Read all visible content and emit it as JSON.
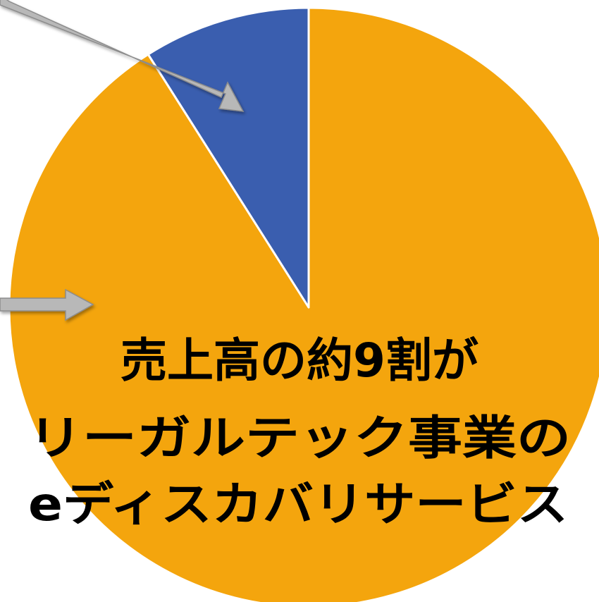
{
  "chart_data": {
    "type": "pie",
    "slices": [
      {
        "value": 91,
        "color": "#F4A50D"
      },
      {
        "value": 9,
        "color": "#3A5EAF"
      }
    ],
    "start_angle_deg": 0,
    "direction": "clockwise"
  },
  "annotation": {
    "lines": [
      "売上高の約9割が",
      "リーガルテック事業の",
      "eディスカバリサービス"
    ]
  },
  "colors": {
    "arrow_fill": "#B8B8B8",
    "arrow_stroke": "#8C8C8C",
    "background": "#FFFFFF"
  }
}
